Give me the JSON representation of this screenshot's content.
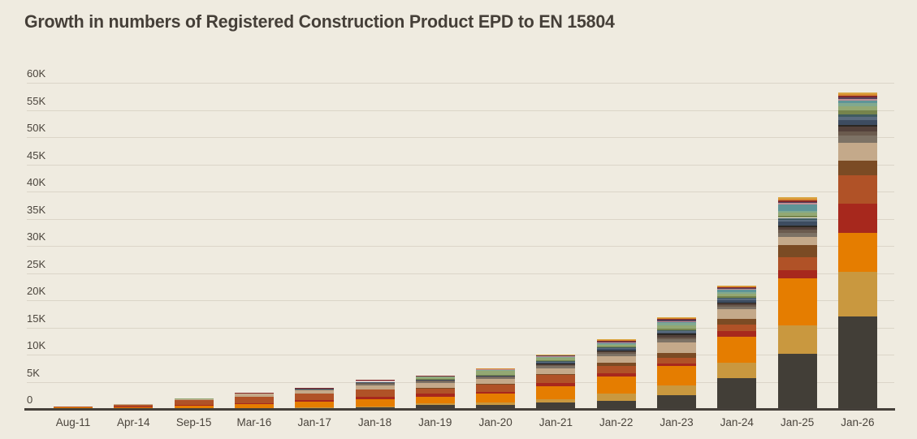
{
  "title": "Growth in numbers of Registered Construction Product EPD to EN 15804",
  "colors": {
    "background": "#EFEBE0",
    "title_text": "#453F38",
    "tick_text": "#4A443C",
    "gridline": "#DBD5C8",
    "axis_line": "#45403A"
  },
  "chart_data": {
    "type": "bar",
    "stacked": true,
    "title": "Growth in numbers of Registered Construction Product EPD to EN 15804",
    "xlabel": "",
    "ylabel": "",
    "ylim": [
      0,
      60000
    ],
    "grid": true,
    "legend": false,
    "y_ticks": [
      "0",
      "5K",
      "10K",
      "15K",
      "20K",
      "25K",
      "30K",
      "35K",
      "40K",
      "45K",
      "50K",
      "55K",
      "60K"
    ],
    "categories": [
      "Aug-11",
      "Apr-14",
      "Sep-15",
      "Mar-16",
      "Jan-17",
      "Jan-18",
      "Jan-19",
      "Jan-20",
      "Jan-21",
      "Jan-22",
      "Jan-23",
      "Jan-24",
      "Jan-25",
      "Jan-26"
    ],
    "totals_thousands": [
      0.5,
      0.95,
      2.0,
      3.0,
      3.9,
      5.4,
      6.15,
      7.45,
      10.05,
      12.9,
      16.9,
      22.7,
      38.95,
      58.2
    ],
    "series": [
      {
        "name": "charcoal",
        "color": "#423E37",
        "values_thousands": [
          0,
          0,
          0,
          0.1,
          0.15,
          0.3,
          0.7,
          0.8,
          1.2,
          1.5,
          2.5,
          5.7,
          10.2,
          17.0
        ]
      },
      {
        "name": "camel",
        "color": "#C9983F",
        "values_thousands": [
          0,
          0,
          0,
          0.1,
          0.15,
          0.2,
          0.4,
          0.4,
          0.6,
          1.3,
          1.8,
          2.8,
          5.2,
          8.2
        ]
      },
      {
        "name": "orange",
        "color": "#E57D00",
        "values_thousands": [
          0.3,
          0.4,
          0.6,
          0.7,
          1.0,
          1.3,
          1.2,
          1.7,
          2.4,
          3.2,
          3.6,
          4.8,
          8.6,
          7.2
        ]
      },
      {
        "name": "brick-red",
        "color": "#A7281D",
        "values_thousands": [
          0,
          0.1,
          0.15,
          0.2,
          0.35,
          0.5,
          0.5,
          0.3,
          0.6,
          0.5,
          0.5,
          1.0,
          1.5,
          5.4
        ]
      },
      {
        "name": "rust",
        "color": "#B05227",
        "values_thousands": [
          0.2,
          0.3,
          0.9,
          1.2,
          1.2,
          1.3,
          1.05,
          1.3,
          1.4,
          1.35,
          1.0,
          1.25,
          2.4,
          5.2
        ]
      },
      {
        "name": "saddle-brown",
        "color": "#7B4B24",
        "values_thousands": [
          0,
          0,
          0,
          0,
          0,
          0,
          0.1,
          0.1,
          0.2,
          0.7,
          0.9,
          1.0,
          2.3,
          2.7
        ]
      },
      {
        "name": "tan",
        "color": "#C4A98A",
        "values_thousands": [
          0,
          0.15,
          0.3,
          0.5,
          0.6,
          0.8,
          0.9,
          0.9,
          1.1,
          1.2,
          2.0,
          1.75,
          1.5,
          3.3
        ]
      },
      {
        "name": "warm-gray",
        "color": "#7D7265",
        "values_thousands": [
          0,
          0,
          0,
          0,
          0.15,
          0.2,
          0.25,
          0.25,
          0.35,
          0.35,
          0.5,
          0.5,
          0.75,
          1.25
        ]
      },
      {
        "name": "taupe",
        "color": "#6B5B4E",
        "values_thousands": [
          0,
          0,
          0,
          0,
          0,
          0.15,
          0.15,
          0.2,
          0.25,
          0.3,
          0.4,
          0.3,
          0.5,
          0.75
        ]
      },
      {
        "name": "dark-brown",
        "color": "#53413A",
        "values_thousands": [
          0,
          0,
          0,
          0,
          0,
          0,
          0,
          0,
          0.15,
          0.2,
          0.4,
          0.3,
          0.5,
          0.9
        ]
      },
      {
        "name": "near-black",
        "color": "#2B2722",
        "values_thousands": [
          0,
          0,
          0,
          0,
          0,
          0,
          0,
          0,
          0.1,
          0.2,
          0.25,
          0.2,
          0.3,
          0.35
        ]
      },
      {
        "name": "navy",
        "color": "#3D4C60",
        "values_thousands": [
          0,
          0,
          0,
          0,
          0.1,
          0.25,
          0.2,
          0.2,
          0.25,
          0.2,
          0.25,
          0.4,
          0.7,
          0.95
        ]
      },
      {
        "name": "slate-blue",
        "color": "#5A6B7E",
        "values_thousands": [
          0,
          0,
          0,
          0,
          0,
          0,
          0,
          0,
          0.1,
          0.2,
          0.25,
          0.25,
          0.4,
          0.5
        ]
      },
      {
        "name": "dark-teal",
        "color": "#3F5B60",
        "values_thousands": [
          0,
          0,
          0,
          0,
          0,
          0,
          0,
          0,
          0.1,
          0.1,
          0.2,
          0.2,
          0.3,
          0.5
        ]
      },
      {
        "name": "olive",
        "color": "#76844C",
        "values_thousands": [
          0,
          0,
          0,
          0,
          0,
          0,
          0.1,
          0.15,
          0.15,
          0.2,
          0.3,
          0.3,
          0.4,
          0.75
        ]
      },
      {
        "name": "sage",
        "color": "#93A873",
        "values_thousands": [
          0,
          0,
          0.05,
          0.15,
          0.15,
          0.2,
          0.3,
          0.7,
          0.45,
          0.35,
          0.55,
          0.4,
          0.5,
          0.65
        ]
      },
      {
        "name": "seafoam",
        "color": "#81A98F",
        "values_thousands": [
          0,
          0,
          0,
          0,
          0,
          0,
          0.1,
          0.1,
          0.15,
          0.2,
          0.35,
          0.3,
          0.4,
          0.6
        ]
      },
      {
        "name": "teal",
        "color": "#5F9598",
        "values_thousands": [
          0,
          0,
          0,
          0,
          0,
          0,
          0,
          0,
          0.1,
          0.1,
          0.2,
          0.5,
          1.2,
          0.45
        ]
      },
      {
        "name": "pink",
        "color": "#C08F96",
        "values_thousands": [
          0,
          0,
          0,
          0,
          0,
          0.1,
          0.1,
          0.15,
          0.1,
          0.1,
          0.1,
          0.15,
          0.2,
          0.3
        ]
      },
      {
        "name": "plum",
        "color": "#55405A",
        "values_thousands": [
          0,
          0,
          0,
          0,
          0,
          0,
          0,
          0,
          0.1,
          0.15,
          0.3,
          0.15,
          0.25,
          0.3
        ]
      },
      {
        "name": "maroon",
        "color": "#84282A",
        "values_thousands": [
          0,
          0,
          0,
          0.05,
          0.05,
          0.1,
          0.1,
          0.15,
          0.1,
          0.2,
          0.15,
          0.15,
          0.25,
          0.3
        ]
      },
      {
        "name": "tangerine",
        "color": "#D88930",
        "values_thousands": [
          0,
          0,
          0,
          0,
          0,
          0,
          0,
          0.05,
          0.05,
          0.1,
          0.15,
          0.15,
          0.3,
          0.35
        ]
      },
      {
        "name": "gold",
        "color": "#D9A440",
        "values_thousands": [
          0,
          0,
          0,
          0,
          0,
          0,
          0,
          0,
          0.05,
          0.2,
          0.25,
          0.15,
          0.3,
          0.3
        ]
      }
    ]
  }
}
